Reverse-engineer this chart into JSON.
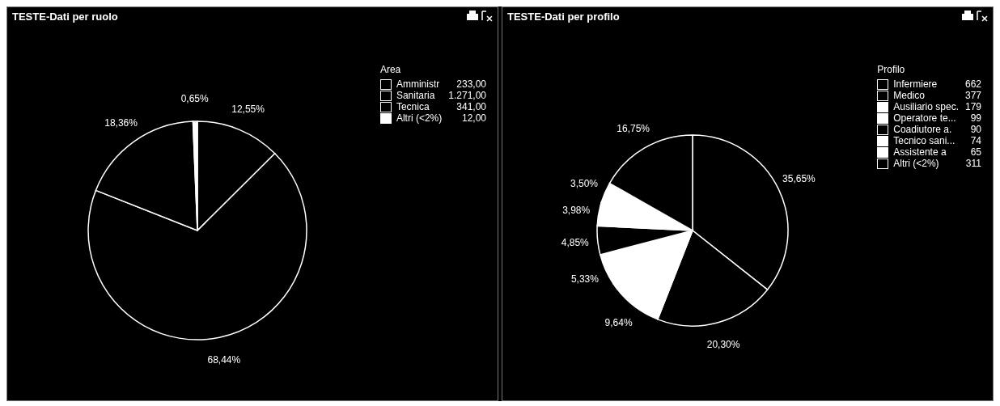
{
  "chart_data": [
    {
      "type": "pie",
      "title": "TESTE-Dati per ruolo",
      "legend_title": "Area",
      "legend": "top right",
      "categories": [
        "Amministr",
        "Sanitaria",
        "Tecnica",
        "Altri (<2%)"
      ],
      "values": [
        12.55,
        68.44,
        18.36,
        0.65
      ],
      "colors": [
        "#000000",
        "#000000",
        "#000000",
        "#ffffff"
      ],
      "value_labels": [
        "12,55%",
        "68,44%",
        "18,36%",
        "0,65%"
      ],
      "annotations": [
        "233,00",
        "1.271,00",
        "341,00",
        "12,00"
      ]
    },
    {
      "type": "pie",
      "title": "TESTE-Dati per profilo",
      "legend_title": "Profilo",
      "legend": "top right",
      "categories": [
        "Infermiere",
        "Medico",
        "Ausiliario spec.",
        "Operatore te...",
        "Coadiutore a.",
        "Tecnico sani...",
        "Assistente a",
        "Altri (<2%)"
      ],
      "values": [
        35.65,
        20.3,
        9.64,
        5.33,
        4.85,
        3.98,
        3.5,
        16.75
      ],
      "colors": [
        "#000000",
        "#000000",
        "#ffffff",
        "#ffffff",
        "#000000",
        "#ffffff",
        "#ffffff",
        "#000000"
      ],
      "value_labels": [
        "35,65%",
        "20,30%",
        "9,64%",
        "5,33%",
        "4,85%",
        "3,98%",
        "3,50%",
        "16,75%"
      ],
      "annotations": [
        "662",
        "377",
        "179",
        "99",
        "90",
        "74",
        "65",
        "311"
      ]
    }
  ]
}
